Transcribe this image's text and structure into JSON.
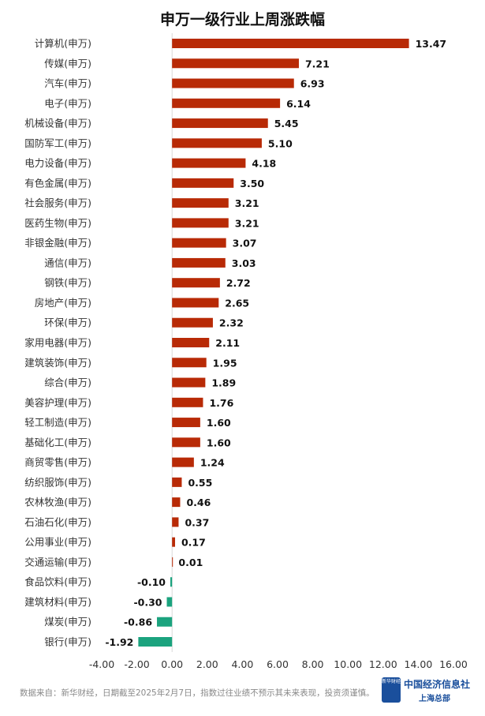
{
  "chart_data": {
    "type": "bar",
    "orientation": "horizontal",
    "title": "申万一级行业上周涨跌幅",
    "categories": [
      "计算机(申万)",
      "传媒(申万)",
      "汽车(申万)",
      "电子(申万)",
      "机械设备(申万)",
      "国防军工(申万)",
      "电力设备(申万)",
      "有色金属(申万)",
      "社会服务(申万)",
      "医药生物(申万)",
      "非银金融(申万)",
      "通信(申万)",
      "钢铁(申万)",
      "房地产(申万)",
      "环保(申万)",
      "家用电器(申万)",
      "建筑装饰(申万)",
      "综合(申万)",
      "美容护理(申万)",
      "轻工制造(申万)",
      "基础化工(申万)",
      "商贸零售(申万)",
      "纺织服饰(申万)",
      "农林牧渔(申万)",
      "石油石化(申万)",
      "公用事业(申万)",
      "交通运输(申万)",
      "食品饮料(申万)",
      "建筑材料(申万)",
      "煤炭(申万)",
      "银行(申万)"
    ],
    "values": [
      13.47,
      7.21,
      6.93,
      6.14,
      5.45,
      5.1,
      4.18,
      3.5,
      3.21,
      3.21,
      3.07,
      3.03,
      2.72,
      2.65,
      2.32,
      2.11,
      1.95,
      1.89,
      1.76,
      1.6,
      1.6,
      1.24,
      0.55,
      0.46,
      0.37,
      0.17,
      0.01,
      -0.1,
      -0.3,
      -0.86,
      -1.92
    ],
    "xlim": [
      -4,
      16
    ],
    "xticks": [
      "-4.00",
      "-2.00",
      "0.00",
      "2.00",
      "4.00",
      "6.00",
      "8.00",
      "10.00",
      "12.00",
      "14.00",
      "16.00"
    ],
    "colors": {
      "positive": "#b82a06",
      "negative": "#1ba37e"
    },
    "grid": false
  },
  "footer": "数据来自：新华财经，日期截至2025年2月7日，指数过往业绩不预示其未来表现，投资须谨慎。",
  "logo": {
    "app": "新华财经",
    "name": "中国经济信息社",
    "sub": "上海总部"
  }
}
